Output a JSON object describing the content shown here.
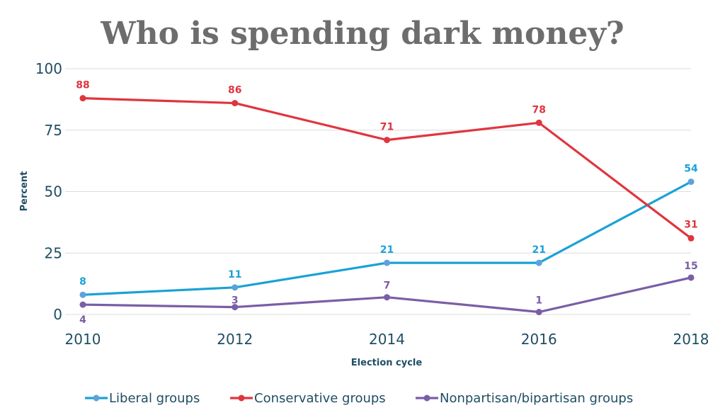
{
  "chart_data": {
    "type": "line",
    "title": "Who is spending dark money?",
    "xlabel": "Election cycle",
    "ylabel": "Percent",
    "x": [
      "2010",
      "2012",
      "2014",
      "2016",
      "2018"
    ],
    "ylim": [
      0,
      100
    ],
    "yticks": [
      "0",
      "25",
      "50",
      "75",
      "100"
    ],
    "grid": true,
    "legend_position": "bottom",
    "series": [
      {
        "name": "Liberal groups",
        "values": [
          8,
          11,
          21,
          21,
          54
        ],
        "color": "#1ba1d6",
        "marker_color": "#5ba3dc"
      },
      {
        "name": "Conservative groups",
        "values": [
          88,
          86,
          71,
          78,
          31
        ],
        "color": "#e0353f",
        "marker_color": "#e0353f"
      },
      {
        "name": "Nonpartisan/bipartisan groups",
        "values": [
          4,
          3,
          7,
          1,
          15
        ],
        "color": "#7a5ea6",
        "marker_color": "#7a5ea6"
      }
    ]
  }
}
